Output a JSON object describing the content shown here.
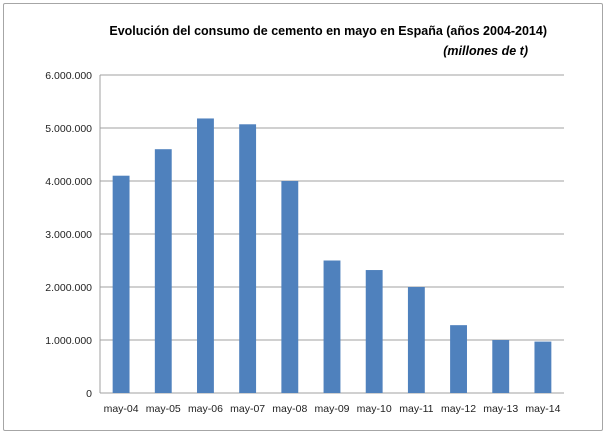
{
  "chart_data": {
    "type": "bar",
    "title": "Evolución del consumo de cemento en mayo en España (años 2004-2014)",
    "subtitle": "(millones de t)",
    "categories": [
      "may-04",
      "may-05",
      "may-06",
      "may-07",
      "may-08",
      "may-09",
      "may-10",
      "may-11",
      "may-12",
      "may-13",
      "may-14"
    ],
    "values": [
      4100000,
      4600000,
      5180000,
      5070000,
      4000000,
      2500000,
      2320000,
      2000000,
      1280000,
      1000000,
      970000
    ],
    "ylim": [
      0,
      6000000
    ],
    "yticks": [
      0,
      1000000,
      2000000,
      3000000,
      4000000,
      5000000,
      6000000
    ],
    "ytick_labels": [
      "0",
      "1.000.000",
      "2.000.000",
      "3.000.000",
      "4.000.000",
      "5.000.000",
      "6.000.000"
    ],
    "grid": true,
    "legend": "none",
    "bar_color": "#4f81bd"
  }
}
